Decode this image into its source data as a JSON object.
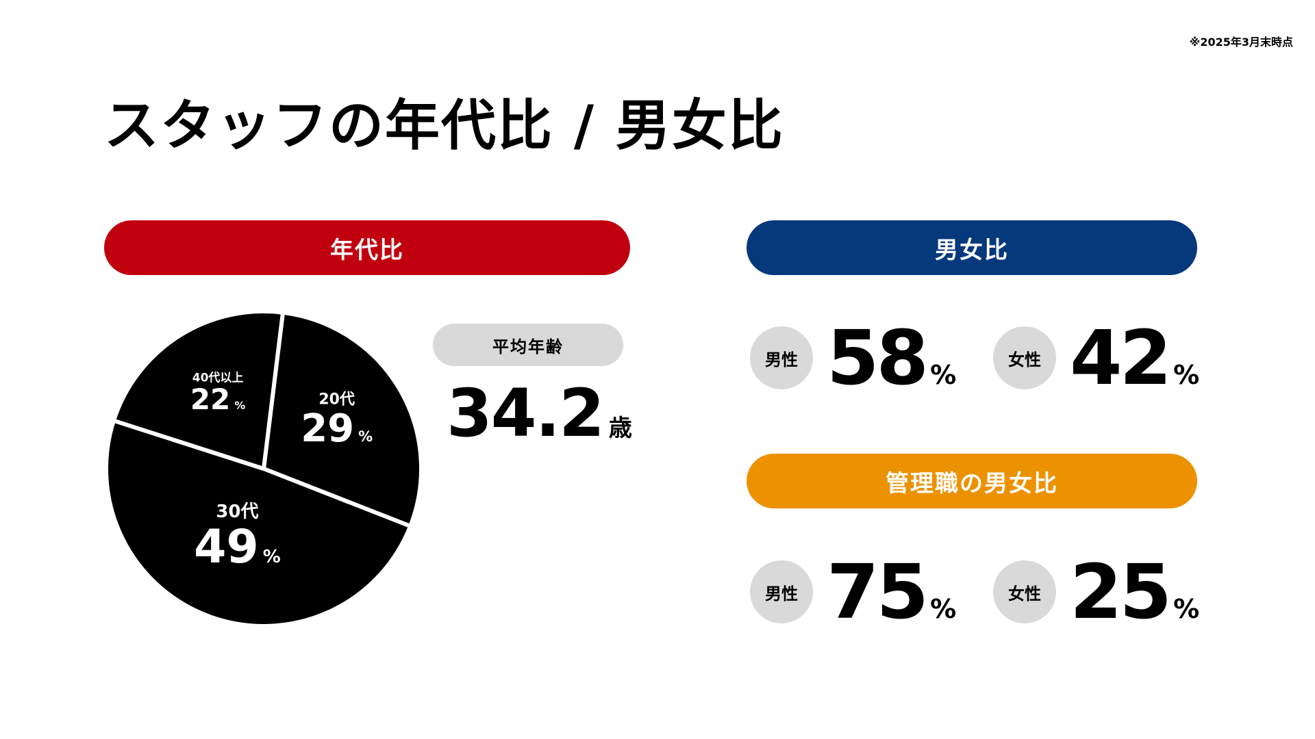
{
  "note": "※2025年3月末時点",
  "title": "スタッフの年代比 / 男女比",
  "colors": {
    "age": "#c1000f",
    "gender": "#06387c",
    "manager": "#ec9100",
    "pie_fill": "#000000",
    "neutral_bg": "#d9d9d9"
  },
  "age_section": {
    "header": "年代比",
    "average": {
      "label": "平均年齢",
      "value": "34.2",
      "unit": "歳"
    }
  },
  "gender_section": {
    "header": "男女比",
    "male": {
      "label": "男性",
      "value": "58",
      "unit": "%"
    },
    "female": {
      "label": "女性",
      "value": "42",
      "unit": "%"
    }
  },
  "manager_section": {
    "header": "管理職の男女比",
    "male": {
      "label": "男性",
      "value": "75",
      "unit": "%"
    },
    "female": {
      "label": "女性",
      "value": "25",
      "unit": "%"
    }
  },
  "chart_data": {
    "type": "pie",
    "title": "年代比",
    "categories": [
      "20代",
      "30代",
      "40代以上"
    ],
    "values": [
      29,
      49,
      22
    ],
    "unit": "%",
    "value_labels": [
      "29",
      "49",
      "22"
    ]
  }
}
